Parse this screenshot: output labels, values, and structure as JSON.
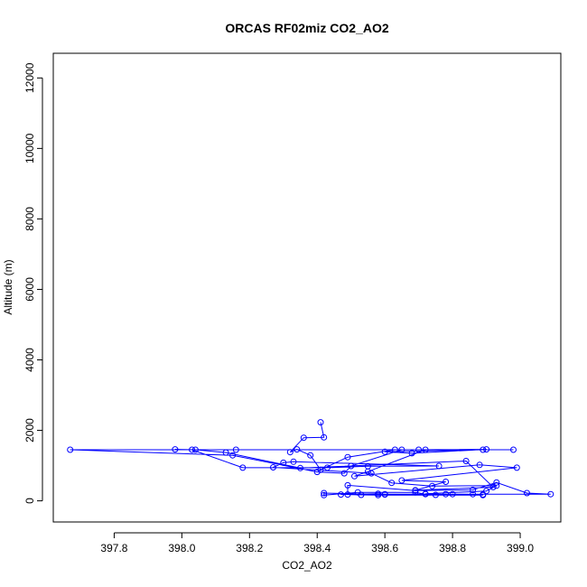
{
  "chart_data": {
    "type": "scatter",
    "title": "ORCAS RF02miz CO2_AO2",
    "xlabel": "CO2_AO2",
    "ylabel": "Altitude (m)",
    "xlim": [
      397.62,
      399.12
    ],
    "ylim": [
      -600,
      12700
    ],
    "x_ticks": [
      397.8,
      398.0,
      398.2,
      398.4,
      398.6,
      398.8,
      399.0
    ],
    "x_tick_labels": [
      "397.8",
      "398.0",
      "398.2",
      "398.4",
      "398.6",
      "398.8",
      "399.0"
    ],
    "y_ticks": [
      0,
      2000,
      4000,
      6000,
      8000,
      10000,
      12000
    ],
    "y_tick_labels": [
      "0",
      "2000",
      "4000",
      "6000",
      "8000",
      "10000",
      "12000"
    ],
    "grid": false,
    "legend": "none",
    "colors": {
      "series": "#0000ff",
      "axis": "#000000"
    },
    "series": [
      {
        "style": "line+points",
        "points": [
          [
            398.41,
            2230
          ],
          [
            398.42,
            1800
          ],
          [
            398.36,
            1790
          ],
          [
            398.32,
            1380
          ],
          [
            398.34,
            1460
          ],
          [
            398.38,
            1290
          ],
          [
            398.41,
            880
          ],
          [
            398.49,
            1240
          ],
          [
            398.63,
            1450
          ],
          [
            398.98,
            1450
          ],
          [
            398.89,
            1450
          ],
          [
            398.6,
            1390
          ],
          [
            398.68,
            1350
          ],
          [
            398.9,
            1460
          ],
          [
            398.7,
            1450
          ],
          [
            398.16,
            1450
          ],
          [
            397.67,
            1450
          ],
          [
            398.15,
            1290
          ],
          [
            398.4,
            820
          ],
          [
            398.48,
            780
          ],
          [
            398.5,
            990
          ],
          [
            398.65,
            1450
          ],
          [
            398.72,
            1450
          ],
          [
            398.55,
            830
          ],
          [
            398.51,
            700
          ],
          [
            398.88,
            1020
          ],
          [
            398.99,
            940
          ],
          [
            398.65,
            580
          ],
          [
            398.78,
            540
          ],
          [
            398.69,
            300
          ],
          [
            398.92,
            390
          ],
          [
            398.84,
            1130
          ],
          [
            398.35,
            930
          ],
          [
            398.13,
            1370
          ],
          [
            398.04,
            1450
          ],
          [
            397.98,
            1460
          ],
          [
            398.03,
            1450
          ],
          [
            398.18,
            940
          ],
          [
            398.43,
            940
          ],
          [
            398.55,
            980
          ],
          [
            398.76,
            990
          ],
          [
            398.33,
            1110
          ],
          [
            398.3,
            1080
          ],
          [
            398.27,
            950
          ],
          [
            398.56,
            780
          ],
          [
            398.62,
            510
          ],
          [
            398.74,
            420
          ],
          [
            398.93,
            430
          ],
          [
            398.9,
            280
          ],
          [
            398.72,
            200
          ],
          [
            398.75,
            170
          ],
          [
            398.89,
            180
          ],
          [
            398.8,
            190
          ],
          [
            398.72,
            190
          ],
          [
            398.69,
            240
          ],
          [
            398.52,
            240
          ],
          [
            398.42,
            160
          ],
          [
            398.42,
            220
          ],
          [
            398.6,
            180
          ],
          [
            398.78,
            190
          ],
          [
            398.86,
            190
          ],
          [
            398.89,
            160
          ],
          [
            398.58,
            160
          ],
          [
            398.53,
            170
          ],
          [
            398.49,
            180
          ],
          [
            398.49,
            440
          ],
          [
            398.69,
            290
          ],
          [
            398.86,
            310
          ],
          [
            398.93,
            520
          ],
          [
            399.02,
            220
          ],
          [
            399.09,
            190
          ],
          [
            398.6,
            190
          ],
          [
            398.58,
            200
          ],
          [
            398.47,
            180
          ]
        ]
      }
    ]
  }
}
